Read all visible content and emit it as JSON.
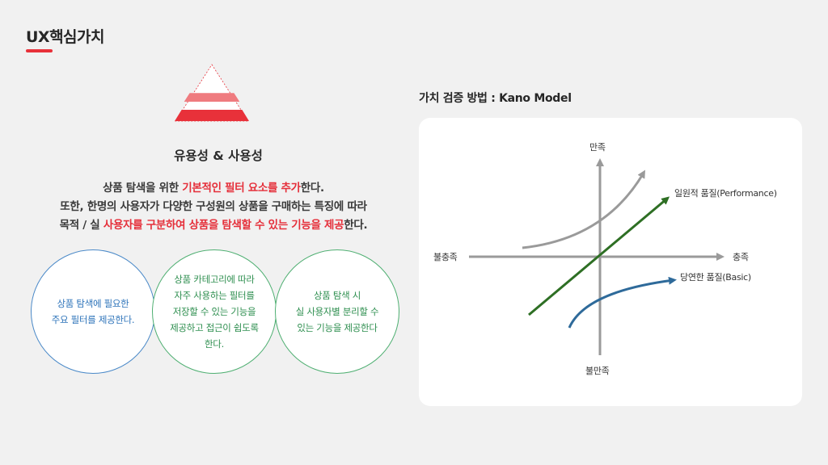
{
  "header": {
    "title": "UX핵심가치",
    "accent_color": "#e8313a"
  },
  "left": {
    "pyramid_colors": [
      "#e8313a",
      "#ef7b7f"
    ],
    "subheading": "유용성 & 사용성",
    "desc": {
      "line1_pre": "상품 탐색을 위한 ",
      "line1_hl": "기본적인 필터 요소를 추가",
      "line1_post": "한다.",
      "line2": "또한, 한명의 사용자가 다양한 구성원의 상품을 구매하는 특징에 따라",
      "line3_pre": "목적 / 실 ",
      "line3_hl": "사용자를 구분하여 상품을 탐색할 수 있는 기능을 제공",
      "line3_post": "한다."
    },
    "circles": [
      {
        "text": "상품 탐색에 필요한\n주요 필터를 제공한다."
      },
      {
        "text": "상품 카테고리에 따라\n자주 사용하는 필터를\n저장할 수 있는 기능을\n제공하고 접근이 쉽도록\n한다."
      },
      {
        "text": "상품 탐색 시\n실 사용자별 분리할 수\n있는 기능을 제공한다"
      }
    ]
  },
  "kano": {
    "title": "가치 검증 방법 : Kano Model",
    "axis": {
      "top": "만족",
      "bottom": "불만족",
      "left": "불충족",
      "right": "충족"
    },
    "curves": [
      {
        "label": "",
        "color": "#9a9a9a"
      },
      {
        "label": "일원적 품질(Performance)",
        "color": "#2e6f24"
      },
      {
        "label": "당연한 품질(Basic)",
        "color": "#2e6a9a"
      }
    ]
  }
}
